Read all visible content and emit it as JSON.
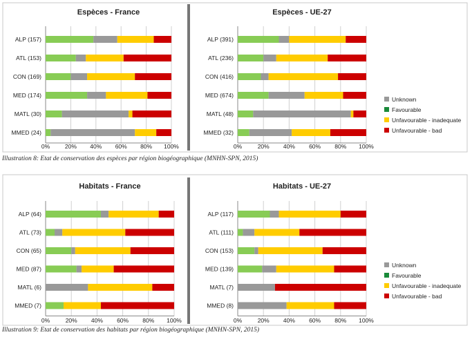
{
  "colors": {
    "unknown": "#999999",
    "favourable": "#88cc55",
    "legend_favourable": "#1a8a3a",
    "inadequate": "#ffcc00",
    "bad": "#cc0000",
    "separator": "#777777",
    "grid": "#d0d0d0",
    "panel_border": "#c8c8c8"
  },
  "legend": [
    {
      "key": "unknown",
      "label": "Unknown"
    },
    {
      "key": "legend_favourable",
      "label": "Favourable"
    },
    {
      "key": "inadequate",
      "label": "Unfavourable - inadequate"
    },
    {
      "key": "bad",
      "label": "Unfavourable - bad"
    }
  ],
  "captions": {
    "species": "Illustration 8: Etat de conservation des espèces par région biogéographique (MNHN-SPN, 2015)",
    "habitats": "Illustration 9: Etat de conservation des habitats par région biogéographique (MNHN-SPN, 2015)"
  },
  "chart_data": [
    {
      "type": "bar",
      "orientation": "horizontal",
      "stacked": true,
      "title": "Espèces - France",
      "categories": [
        "ALP (157)",
        "ATL (153)",
        "CON (169)",
        "MED (174)",
        "MATL (30)",
        "MMED (24)"
      ],
      "xticks": [
        "0%",
        "20%",
        "40%",
        "60%",
        "80%",
        "100%"
      ],
      "xlim": [
        0,
        100
      ],
      "series": [
        {
          "key": "favourable",
          "values": [
            38,
            24,
            20,
            33,
            13,
            4
          ]
        },
        {
          "key": "unknown",
          "values": [
            19,
            8,
            13,
            15,
            53,
            67
          ]
        },
        {
          "key": "inadequate",
          "values": [
            29,
            30,
            38,
            33,
            3,
            17
          ]
        },
        {
          "key": "bad",
          "values": [
            14,
            38,
            29,
            19,
            31,
            12
          ]
        }
      ]
    },
    {
      "type": "bar",
      "orientation": "horizontal",
      "stacked": true,
      "title": "Espèces - UE-27",
      "categories": [
        "ALP (391)",
        "ATL (236)",
        "CON (416)",
        "MED (674)",
        "MATL (48)",
        "MMED (32)"
      ],
      "xticks": [
        "0%",
        "20%",
        "40%",
        "60%",
        "80%",
        "100%"
      ],
      "xlim": [
        0,
        100
      ],
      "series": [
        {
          "key": "favourable",
          "values": [
            32,
            20,
            18,
            24,
            12,
            9
          ]
        },
        {
          "key": "unknown",
          "values": [
            8,
            10,
            6,
            28,
            76,
            33
          ]
        },
        {
          "key": "inadequate",
          "values": [
            44,
            40,
            54,
            30,
            2,
            30
          ]
        },
        {
          "key": "bad",
          "values": [
            16,
            30,
            22,
            18,
            10,
            28
          ]
        }
      ]
    },
    {
      "type": "bar",
      "orientation": "horizontal",
      "stacked": true,
      "title": "Habitats - France",
      "categories": [
        "ALP (64)",
        "ATL (73)",
        "CON (65)",
        "MED (87)",
        "MATL (6)",
        "MMED (7)"
      ],
      "xticks": [
        "0%",
        "20%",
        "40%",
        "60%",
        "80%",
        "100%"
      ],
      "xlim": [
        0,
        100
      ],
      "series": [
        {
          "key": "favourable",
          "values": [
            43,
            7,
            20,
            24,
            0,
            14
          ]
        },
        {
          "key": "unknown",
          "values": [
            6,
            6,
            3,
            4,
            33,
            0
          ]
        },
        {
          "key": "inadequate",
          "values": [
            39,
            49,
            43,
            25,
            50,
            29
          ]
        },
        {
          "key": "bad",
          "values": [
            12,
            38,
            34,
            47,
            17,
            57
          ]
        }
      ]
    },
    {
      "type": "bar",
      "orientation": "horizontal",
      "stacked": true,
      "title": "Habitats - UE-27",
      "categories": [
        "ALP (117)",
        "ATL (111)",
        "CON (153)",
        "MED (139)",
        "MATL (7)",
        "MMED (8)"
      ],
      "xticks": [
        "0%",
        "20%",
        "40%",
        "60%",
        "80%",
        "100%"
      ],
      "xlim": [
        0,
        100
      ],
      "series": [
        {
          "key": "favourable",
          "values": [
            25,
            4,
            13,
            19,
            0,
            0
          ]
        },
        {
          "key": "unknown",
          "values": [
            7,
            9,
            3,
            11,
            29,
            38
          ]
        },
        {
          "key": "inadequate",
          "values": [
            48,
            35,
            50,
            45,
            0,
            37
          ]
        },
        {
          "key": "bad",
          "values": [
            20,
            52,
            34,
            25,
            71,
            25
          ]
        }
      ]
    }
  ]
}
